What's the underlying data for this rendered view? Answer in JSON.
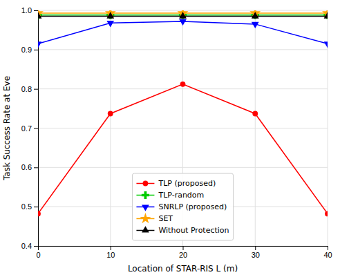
{
  "chart_data": {
    "type": "line",
    "x": [
      0,
      10,
      20,
      30,
      40
    ],
    "series": [
      {
        "name": "TLP (proposed)",
        "color": "#ff0000",
        "marker": "circle",
        "values": [
          0.482,
          0.737,
          0.812,
          0.737,
          0.482
        ]
      },
      {
        "name": "TLP-random",
        "color": "#00cc00",
        "marker": "plus",
        "values": [
          0.988,
          0.988,
          0.988,
          0.988,
          0.988
        ]
      },
      {
        "name": "SNRLP (proposed)",
        "color": "#0000ff",
        "marker": "triangle-down",
        "values": [
          0.915,
          0.968,
          0.972,
          0.965,
          0.915
        ]
      },
      {
        "name": "SET",
        "color": "#ffa500",
        "marker": "star",
        "values": [
          0.993,
          0.993,
          0.993,
          0.993,
          0.993
        ]
      },
      {
        "name": "Without Protection",
        "color": "#000000",
        "marker": "triangle-up",
        "values": [
          0.985,
          0.985,
          0.985,
          0.985,
          0.985
        ]
      }
    ],
    "xlabel": "Location of STAR-RIS L (m)",
    "ylabel": "Task Success Rate at Eve",
    "xlim": [
      0,
      40
    ],
    "ylim": [
      0.4,
      1.0
    ],
    "xticks": [
      0,
      10,
      20,
      30,
      40
    ],
    "yticks": [
      0.4,
      0.5,
      0.6,
      0.7,
      0.8,
      0.9,
      {
        "value": 1.0,
        "label": "1.0"
      }
    ],
    "grid": true,
    "legend": "lower center"
  }
}
